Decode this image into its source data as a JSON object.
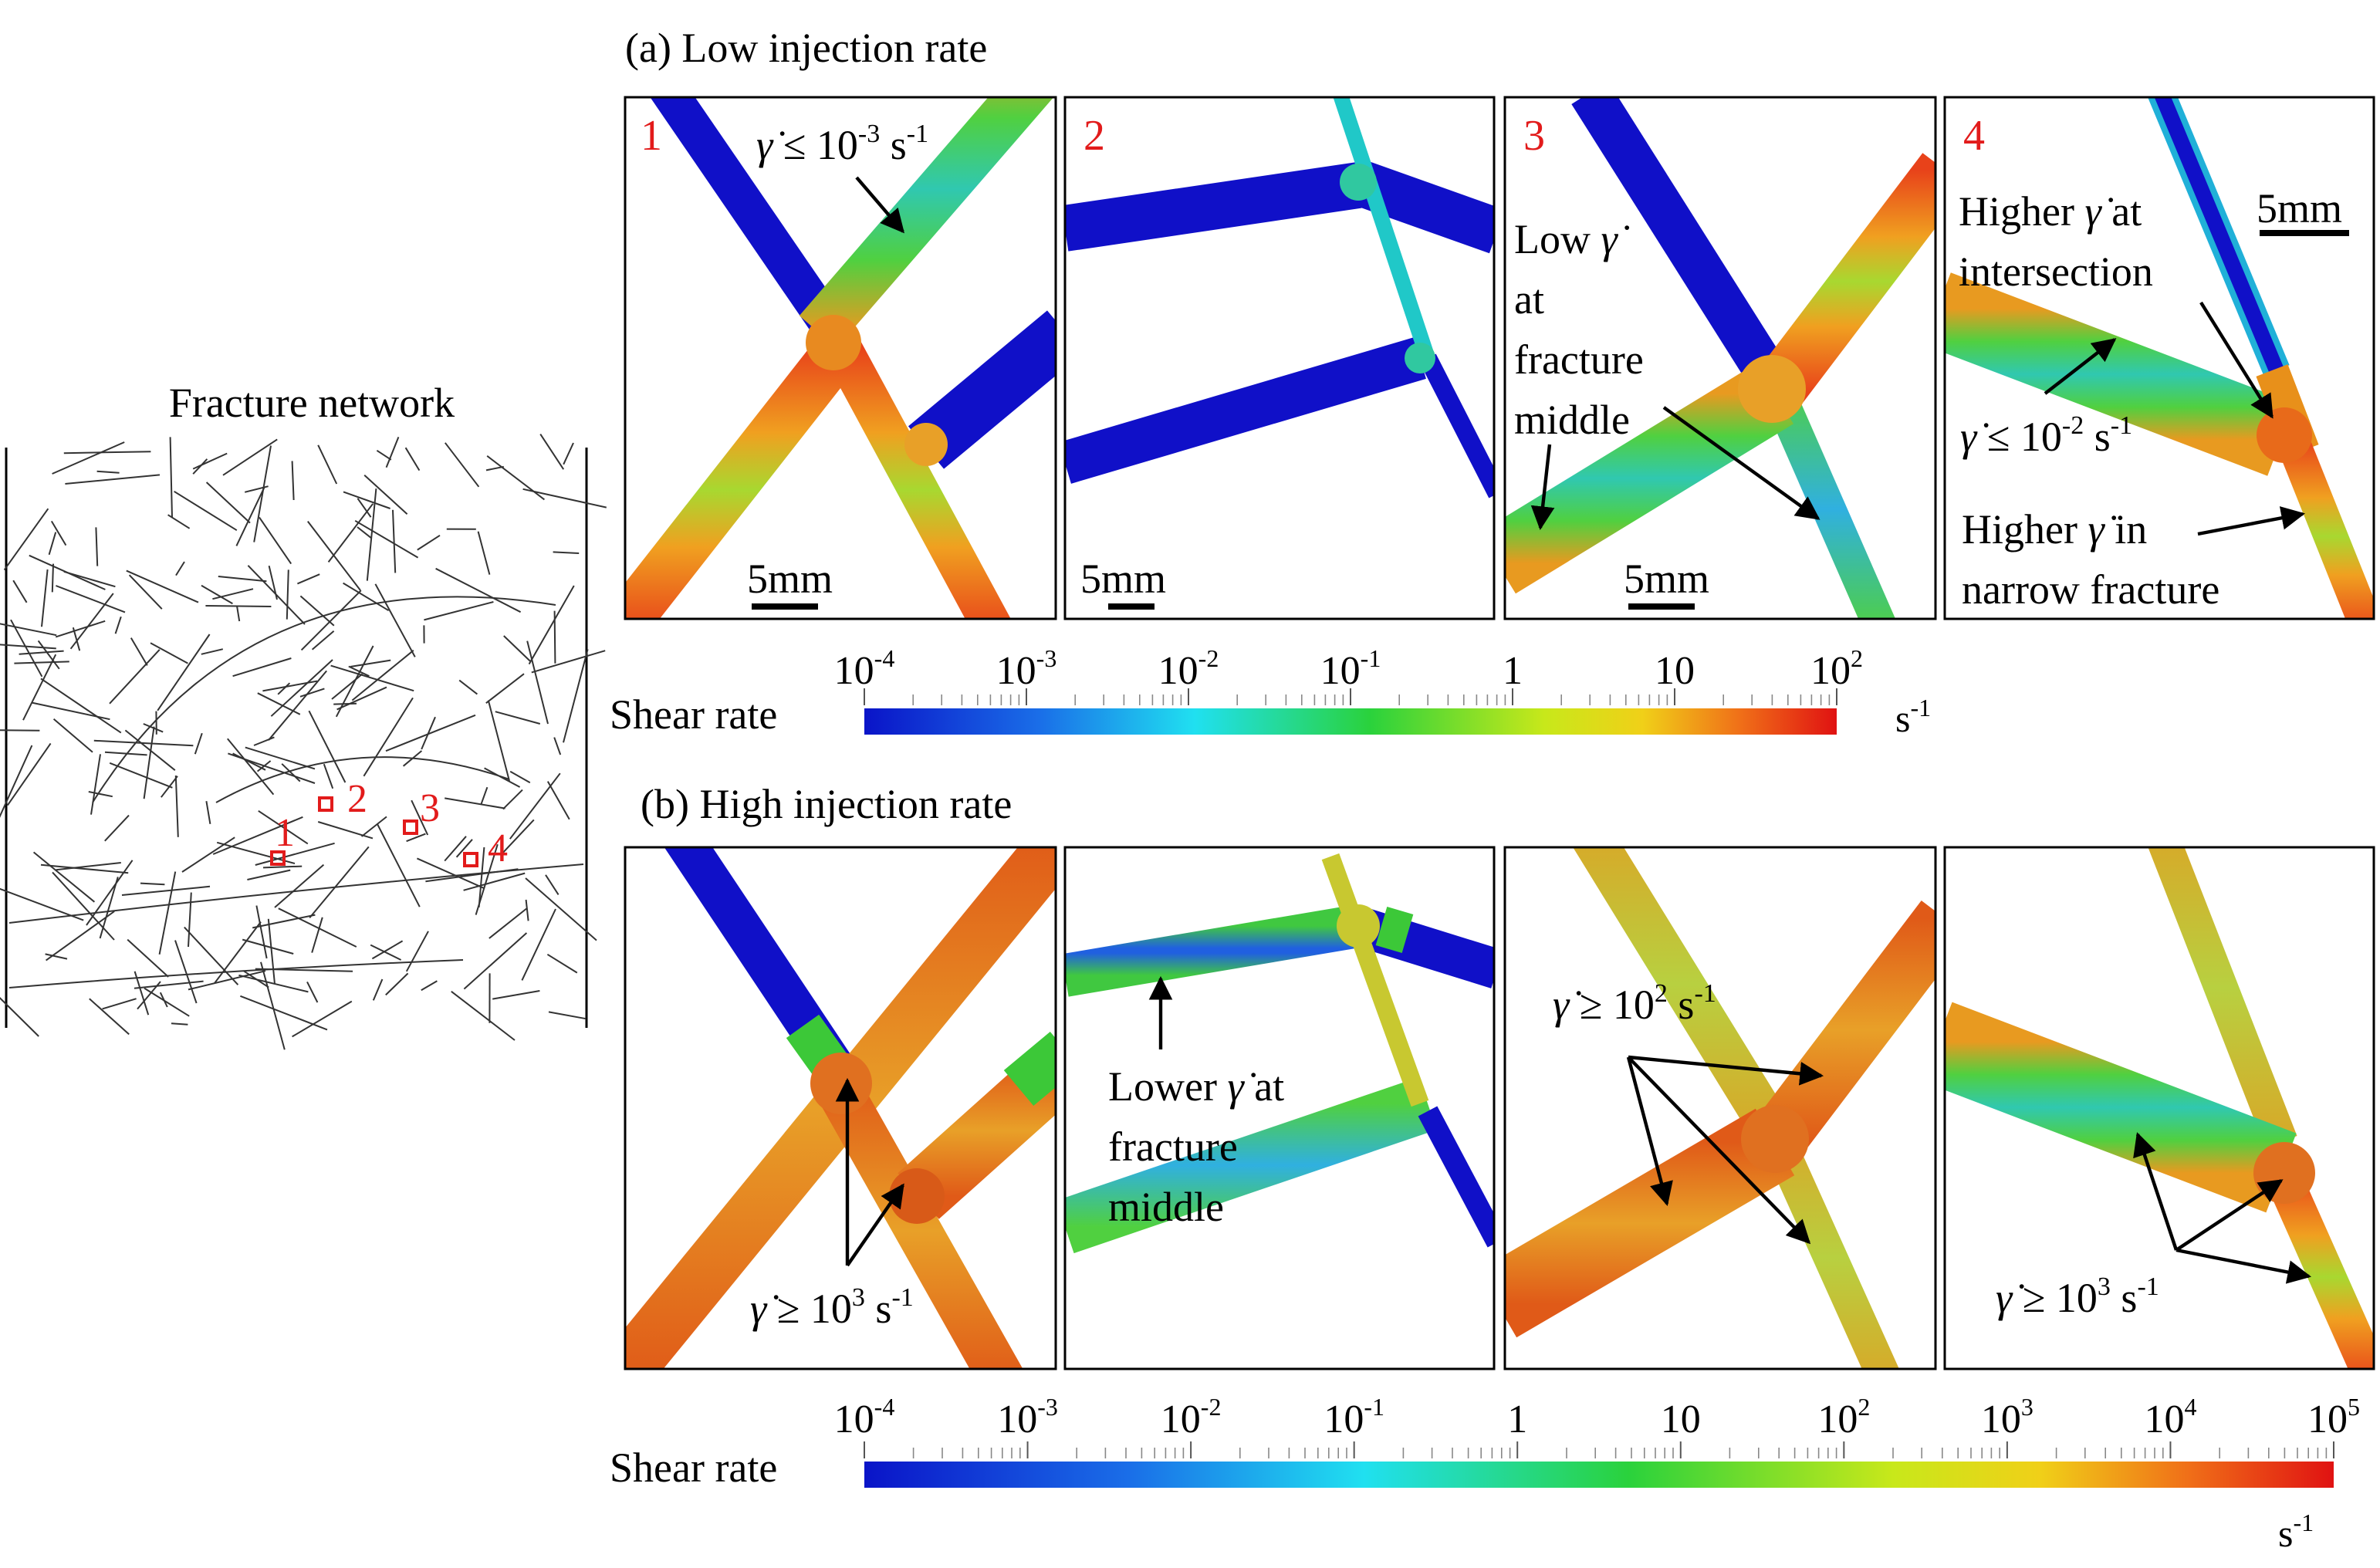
{
  "network": {
    "title": "Fracture network",
    "markers": [
      "1",
      "2",
      "3",
      "4"
    ]
  },
  "section_a": {
    "title": "(a) Low injection rate",
    "panel_numbers": [
      "1",
      "2",
      "3",
      "4"
    ],
    "scale_bar": "5mm",
    "annotations": {
      "p1_low": {
        "gd": "γ̇",
        "rel": " ≤ 10",
        "exp": "-3",
        "unit": " s",
        "unit_exp": "-1"
      },
      "p3_low_1": "Low",
      "p3_gd": "γ̇",
      "p3_low_2": "at",
      "p3_low_3": "fracture",
      "p3_low_4": "middle",
      "p4_higher_1a": "Higher ",
      "p4_higher_1b": "γ̇",
      "p4_higher_1c": " at",
      "p4_intersection": "intersection",
      "p4_low": {
        "gd": "γ̇",
        "rel": " ≤ 10",
        "exp": "-2",
        "unit": " s",
        "unit_exp": "-1"
      },
      "p4_higher_2a": "Higher ",
      "p4_higher_2b": "γ̇",
      "p4_higher_2c": " in",
      "p4_narrow": "narrow fracture"
    },
    "colorbar": {
      "label": "Shear rate",
      "unit": "s",
      "unit_exp": "-1",
      "ticks": [
        {
          "base": "10",
          "exp": "-4"
        },
        {
          "base": "10",
          "exp": "-3"
        },
        {
          "base": "10",
          "exp": "-2"
        },
        {
          "base": "10",
          "exp": "-1"
        },
        {
          "base": "1",
          "exp": ""
        },
        {
          "base": "10",
          "exp": ""
        },
        {
          "base": "10",
          "exp": "2"
        }
      ]
    }
  },
  "section_b": {
    "title": "(b) High injection rate",
    "annotations": {
      "p1_high": {
        "gd": "γ̇",
        "rel": " ≥ 10",
        "exp": "3",
        "unit": " s",
        "unit_exp": "-1"
      },
      "p2_lower_1a": "Lower ",
      "p2_lower_1b": "γ̇",
      "p2_lower_1c": " at",
      "p2_lower_2": "fracture",
      "p2_lower_3": "middle",
      "p3_high": {
        "gd": "γ̇",
        "rel": " ≥ 10",
        "exp": "2",
        "unit": " s",
        "unit_exp": "-1"
      },
      "p4_high": {
        "gd": "γ̇",
        "rel": " ≥ 10",
        "exp": "3",
        "unit": " s",
        "unit_exp": "-1"
      }
    },
    "colorbar": {
      "label": "Shear rate",
      "unit": "s",
      "unit_exp": "-1",
      "ticks": [
        {
          "base": "10",
          "exp": "-4"
        },
        {
          "base": "10",
          "exp": "-3"
        },
        {
          "base": "10",
          "exp": "-2"
        },
        {
          "base": "10",
          "exp": "-1"
        },
        {
          "base": "1",
          "exp": ""
        },
        {
          "base": "10",
          "exp": ""
        },
        {
          "base": "10",
          "exp": "2"
        },
        {
          "base": "10",
          "exp": "3"
        },
        {
          "base": "10",
          "exp": "4"
        },
        {
          "base": "10",
          "exp": "5"
        }
      ]
    }
  },
  "colors": {
    "low": "#1010c8",
    "mid": "#22c83a",
    "high": "#e0401a",
    "marker": "#e21b1b"
  }
}
